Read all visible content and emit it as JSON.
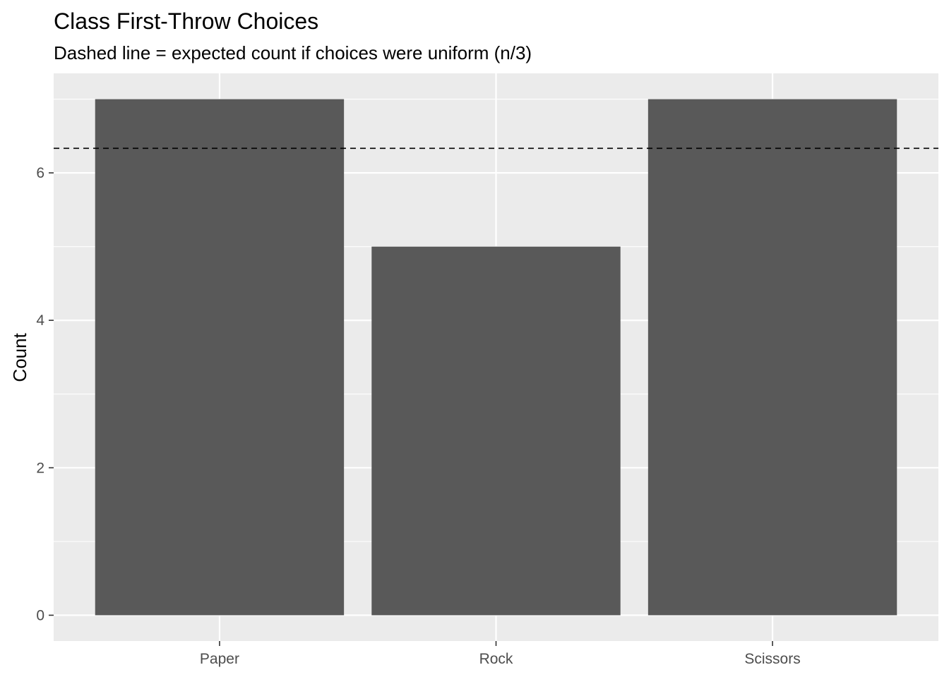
{
  "chart_data": {
    "type": "bar",
    "title": "Class First-Throw Choices",
    "subtitle": "Dashed line = expected count if choices were uniform (n/3)",
    "xlabel": "",
    "ylabel": "Count",
    "categories": [
      "Paper",
      "Rock",
      "Scissors"
    ],
    "values": [
      7,
      5,
      7
    ],
    "ylim": [
      -0.35,
      7.35
    ],
    "yticks": [
      0,
      2,
      4,
      6
    ],
    "ytick_labels": [
      "0",
      "2",
      "4",
      "6"
    ],
    "reference_line": {
      "value": 6.333,
      "style": "dashed"
    },
    "grid": true,
    "legend": "none",
    "colors": {
      "bar": "#595959",
      "panel": "#ebebeb",
      "grid": "#ffffff",
      "reference_line": "#000000"
    }
  }
}
